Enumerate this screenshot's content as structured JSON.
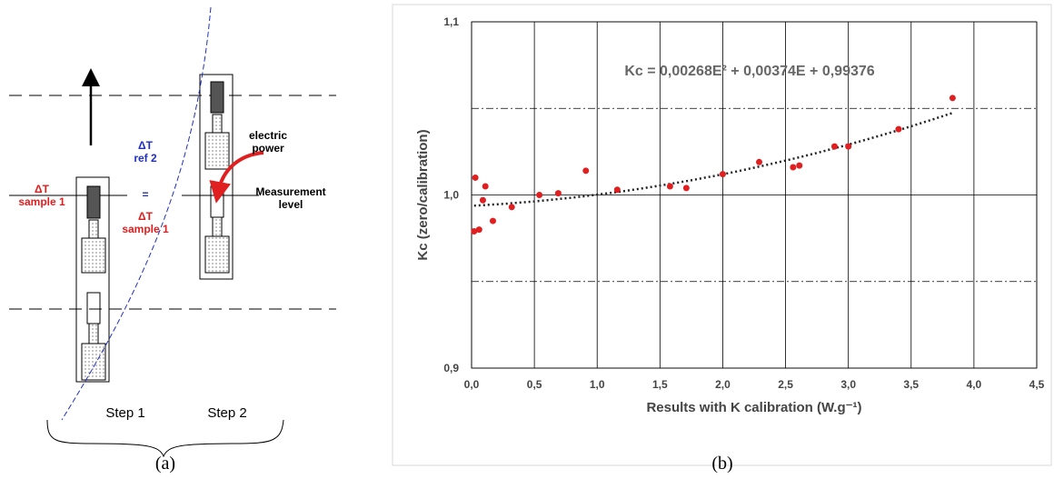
{
  "diagram": {
    "labels": {
      "dt_sample_step1": "ΔT\nsample 1",
      "dt_ref2": "ΔT\nref 2",
      "equals": "=",
      "dt_sample_step2": "ΔT\nsample 1",
      "electric_power": "electric\npower",
      "measurement_level": "Measurement\nlevel",
      "step1": "Step 1",
      "step2": "Step 2",
      "panel": "(a)"
    }
  },
  "chart_panel": "(b)",
  "chart_data": {
    "type": "scatter",
    "x_label": "Results with K calibration (W.g⁻¹)",
    "y_label": "Kc (zero/calibration)",
    "x": [
      0.02,
      0.06,
      0.03,
      0.11,
      0.09,
      0.17,
      0.32,
      0.54,
      0.69,
      0.91,
      1.16,
      1.58,
      1.71,
      2.0,
      2.29,
      2.56,
      2.61,
      2.89,
      3.0,
      3.4,
      3.83
    ],
    "values": [
      0.979,
      0.98,
      1.01,
      1.005,
      0.997,
      0.985,
      0.993,
      1.0,
      1.001,
      1.014,
      1.003,
      1.005,
      1.004,
      1.012,
      1.019,
      1.016,
      1.017,
      1.028,
      1.028,
      1.038,
      1.056
    ],
    "color": "#e02020",
    "trendline": {
      "label": "Kc = 0,00268E² + 0,00374E + 0,99376",
      "coefficients": [
        0.00268,
        0.00374,
        0.99376
      ]
    },
    "xlim": [
      0,
      4.5
    ],
    "xticks": [
      {
        "value": 0,
        "label": "0,0"
      },
      {
        "value": 0.5,
        "label": "0,5"
      },
      {
        "value": 1,
        "label": "1,0"
      },
      {
        "value": 1.5,
        "label": "1,5"
      },
      {
        "value": 2,
        "label": "2,0"
      },
      {
        "value": 2.5,
        "label": "2,5"
      },
      {
        "value": 3,
        "label": "3,0"
      },
      {
        "value": 3.5,
        "label": "3,5"
      },
      {
        "value": 4,
        "label": "4,0"
      },
      {
        "value": 4.5,
        "label": "4,5"
      }
    ],
    "ylim": [
      0.9,
      1.1
    ],
    "yticks": [
      {
        "value": 0.9,
        "label": "0,9"
      },
      {
        "value": 1,
        "label": "1,0"
      },
      {
        "value": 1.1,
        "label": "1,1"
      }
    ],
    "y_minor_grid": [
      0.95,
      1.05
    ],
    "grid": true
  }
}
